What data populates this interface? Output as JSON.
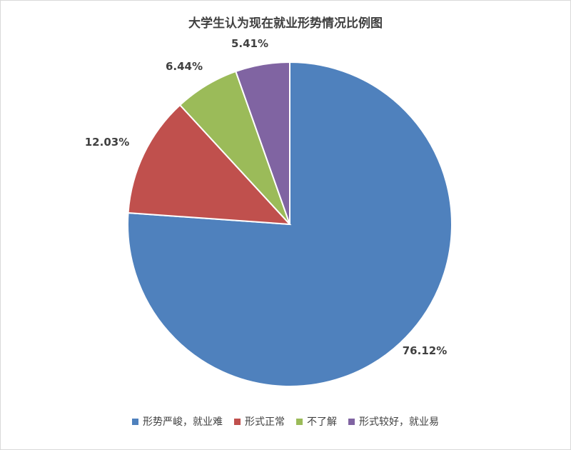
{
  "chart_data": {
    "type": "pie",
    "title": "大学生认为现在就业形势情况比例图",
    "slices": [
      {
        "label": "形势严峻，就业难",
        "value": 76.12,
        "display": "76.12%",
        "color": "#4F81BD"
      },
      {
        "label": "形式正常",
        "value": 12.03,
        "display": "12.03%",
        "color": "#C0504D"
      },
      {
        "label": "不了解",
        "value": 6.44,
        "display": "6.44%",
        "color": "#9BBB59"
      },
      {
        "label": "形式较好，就业易",
        "value": 5.41,
        "display": "5.41%",
        "color": "#8064A2"
      }
    ],
    "legend_position": "bottom",
    "start": "12 o'clock, clockwise"
  }
}
